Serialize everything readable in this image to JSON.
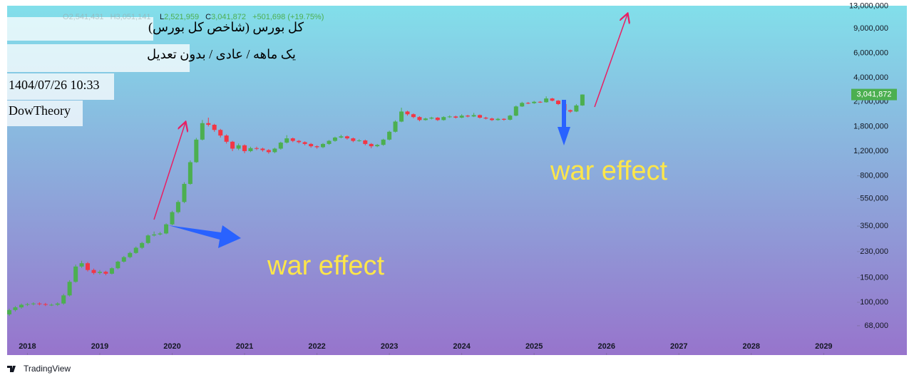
{
  "chart_data": {
    "type": "candlestick",
    "title": "کل بورس (شاخص کل بورس)",
    "subtitle": "یک ماهه / عادی / بدون تعدیل",
    "timestamp": "1404/07/26 10:33",
    "author": "DowTheory",
    "ohlc_legend": {
      "open_key": "O",
      "open": "2,541,431",
      "high_key": "H",
      "high": "3,051,141",
      "low_key": "L",
      "low": "2,521,959",
      "close_key": "C",
      "close": "3,041,872",
      "change": "+501,698 (+19.75%)"
    },
    "last_value_label": "3,041,872",
    "annotations": [
      "war effect",
      "war effect"
    ],
    "log_scale": true,
    "up_color": "#4caf50",
    "down_color": "#f23645",
    "xlim": [
      2017.72,
      2029.44
    ],
    "xticks": [
      2018,
      2019,
      2020,
      2021,
      2022,
      2023,
      2024,
      2025,
      2026,
      2027,
      2028,
      2029
    ],
    "ylim": [
      42000,
      13100000
    ],
    "yticks": [
      {
        "value": 68000,
        "label": "68,000"
      },
      {
        "value": 100000,
        "label": "100,000"
      },
      {
        "value": 150000,
        "label": "150,000"
      },
      {
        "value": 230000,
        "label": "230,000"
      },
      {
        "value": 350000,
        "label": "350,000"
      },
      {
        "value": 550000,
        "label": "550,000"
      },
      {
        "value": 800000,
        "label": "800,000"
      },
      {
        "value": 1200000,
        "label": "1,200,000"
      },
      {
        "value": 1800000,
        "label": "1,800,000"
      },
      {
        "value": 2700000,
        "label": "2,700,000"
      },
      {
        "value": 4000000,
        "label": "4,000,000"
      },
      {
        "value": 6000000,
        "label": "6,000,000"
      },
      {
        "value": 9000000,
        "label": "9,000,000"
      },
      {
        "value": 13000000,
        "label": "13,000,000"
      }
    ],
    "x": [
      2017.75,
      2017.833,
      2017.917,
      2018,
      2018.083,
      2018.167,
      2018.25,
      2018.333,
      2018.417,
      2018.5,
      2018.583,
      2018.667,
      2018.75,
      2018.833,
      2018.917,
      2019,
      2019.083,
      2019.167,
      2019.25,
      2019.333,
      2019.417,
      2019.5,
      2019.583,
      2019.667,
      2019.75,
      2019.833,
      2019.917,
      2020,
      2020.083,
      2020.167,
      2020.25,
      2020.333,
      2020.417,
      2020.5,
      2020.583,
      2020.667,
      2020.75,
      2020.833,
      2020.917,
      2021,
      2021.083,
      2021.167,
      2021.25,
      2021.333,
      2021.417,
      2021.5,
      2021.583,
      2021.667,
      2021.75,
      2021.833,
      2021.917,
      2022,
      2022.083,
      2022.167,
      2022.25,
      2022.333,
      2022.417,
      2022.5,
      2022.583,
      2022.667,
      2022.75,
      2022.833,
      2022.917,
      2023,
      2023.083,
      2023.167,
      2023.25,
      2023.333,
      2023.417,
      2023.5,
      2023.583,
      2023.667,
      2023.75,
      2023.833,
      2023.917,
      2024,
      2024.083,
      2024.167,
      2024.25,
      2024.333,
      2024.417,
      2024.5,
      2024.583,
      2024.667,
      2024.75,
      2024.833,
      2024.917,
      2025,
      2025.083,
      2025.167,
      2025.25,
      2025.333,
      2025.417,
      2025.5,
      2025.583,
      2025.667
    ],
    "open": [
      82000,
      88000,
      92000,
      96000,
      97000,
      98000,
      97000,
      96000,
      96000,
      98000,
      112000,
      140000,
      180000,
      190000,
      170000,
      162000,
      165000,
      160000,
      175000,
      195000,
      210000,
      225000,
      245000,
      265000,
      300000,
      305000,
      310000,
      360000,
      440000,
      520000,
      700000,
      1000000,
      1450000,
      1900000,
      1850000,
      1700000,
      1550000,
      1400000,
      1250000,
      1320000,
      1200000,
      1260000,
      1250000,
      1220000,
      1180000,
      1250000,
      1380000,
      1480000,
      1420000,
      1390000,
      1350000,
      1300000,
      1280000,
      1350000,
      1420000,
      1500000,
      1530000,
      1480000,
      1420000,
      1430000,
      1350000,
      1300000,
      1330000,
      1450000,
      1650000,
      1950000,
      2300000,
      2200000,
      2100000,
      2000000,
      2050000,
      2080000,
      2000000,
      2100000,
      2120000,
      2080000,
      2150000,
      2120000,
      2170000,
      2080000,
      2050000,
      2000000,
      2040000,
      2010000,
      2150000,
      2500000,
      2650000,
      2640000,
      2700000,
      2680000,
      2850000,
      2750000,
      2600000,
      2350000,
      2300000,
      2541431
    ],
    "high": [
      90000,
      94000,
      98000,
      99000,
      100000,
      100000,
      99000,
      98000,
      100000,
      115000,
      144000,
      186000,
      198000,
      194000,
      174000,
      170000,
      168000,
      178000,
      198000,
      214000,
      230000,
      250000,
      270000,
      305000,
      320000,
      318000,
      366000,
      450000,
      535000,
      720000,
      1030000,
      1490000,
      2000000,
      2080000,
      1880000,
      1730000,
      1580000,
      1420000,
      1360000,
      1340000,
      1290000,
      1290000,
      1270000,
      1240000,
      1270000,
      1400000,
      1560000,
      1500000,
      1440000,
      1410000,
      1370000,
      1320000,
      1370000,
      1440000,
      1520000,
      1570000,
      1550000,
      1500000,
      1460000,
      1450000,
      1370000,
      1350000,
      1470000,
      1680000,
      1990000,
      2450000,
      2330000,
      2230000,
      2130000,
      2080000,
      2110000,
      2100000,
      2130000,
      2160000,
      2150000,
      2200000,
      2180000,
      2250000,
      2190000,
      2110000,
      2080000,
      2070000,
      2060000,
      2180000,
      2540000,
      2700000,
      2690000,
      2740000,
      2730000,
      2950000,
      2880000,
      2780000,
      2630000,
      2380000,
      2600000,
      3051141
    ],
    "low": [
      80000,
      86000,
      90000,
      94000,
      95000,
      95000,
      94000,
      94000,
      94000,
      96000,
      110000,
      138000,
      176000,
      166000,
      158000,
      158000,
      156000,
      158000,
      172000,
      192000,
      206000,
      222000,
      240000,
      260000,
      295000,
      300000,
      306000,
      355000,
      430000,
      510000,
      690000,
      990000,
      1430000,
      1800000,
      1650000,
      1500000,
      1360000,
      1200000,
      1220000,
      1160000,
      1180000,
      1220000,
      1190000,
      1150000,
      1160000,
      1230000,
      1360000,
      1390000,
      1360000,
      1320000,
      1270000,
      1250000,
      1260000,
      1330000,
      1400000,
      1480000,
      1450000,
      1390000,
      1400000,
      1320000,
      1260000,
      1280000,
      1310000,
      1430000,
      1630000,
      1930000,
      2150000,
      2060000,
      1960000,
      1980000,
      2020000,
      1970000,
      1980000,
      2070000,
      2050000,
      2060000,
      2090000,
      2100000,
      2050000,
      2020000,
      1970000,
      1980000,
      1980000,
      1990000,
      2130000,
      2480000,
      2600000,
      2610000,
      2650000,
      2660000,
      2720000,
      2560000,
      2300000,
      2250000,
      2280000,
      2521959
    ],
    "close": [
      88000,
      92000,
      96000,
      97000,
      98000,
      97000,
      96000,
      96000,
      98000,
      112000,
      140000,
      180000,
      190000,
      170000,
      162000,
      165000,
      160000,
      175000,
      195000,
      210000,
      225000,
      245000,
      265000,
      300000,
      305000,
      310000,
      360000,
      440000,
      520000,
      700000,
      1000000,
      1450000,
      1900000,
      1850000,
      1700000,
      1550000,
      1400000,
      1250000,
      1320000,
      1200000,
      1260000,
      1250000,
      1220000,
      1180000,
      1250000,
      1380000,
      1480000,
      1420000,
      1390000,
      1350000,
      1300000,
      1280000,
      1350000,
      1420000,
      1500000,
      1530000,
      1480000,
      1420000,
      1430000,
      1350000,
      1300000,
      1330000,
      1450000,
      1650000,
      1950000,
      2300000,
      2200000,
      2100000,
      2000000,
      2050000,
      2080000,
      2000000,
      2100000,
      2120000,
      2080000,
      2150000,
      2120000,
      2170000,
      2080000,
      2050000,
      2000000,
      2040000,
      2010000,
      2150000,
      2500000,
      2650000,
      2640000,
      2700000,
      2680000,
      2850000,
      2750000,
      2600000,
      2350000,
      2300000,
      2541431,
      3041872
    ]
  },
  "footer": {
    "brand": "TradingView"
  }
}
